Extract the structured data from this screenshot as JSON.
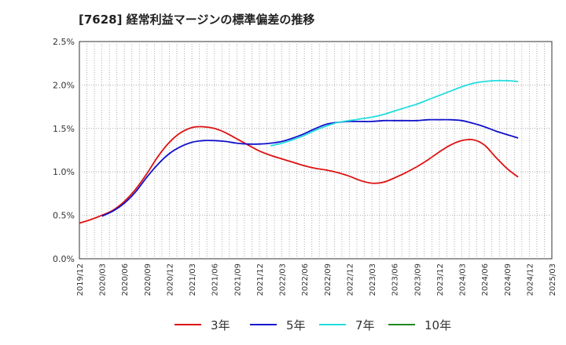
{
  "chart_data": {
    "type": "line",
    "title": "[7628]  経常利益マージンの標準偏差の推移",
    "ylim": [
      0,
      2.5
    ],
    "yticks": [
      "0.0%",
      "0.5%",
      "1.0%",
      "1.5%",
      "2.0%",
      "2.5%"
    ],
    "xticks": [
      "2019/12",
      "2020/03",
      "2020/06",
      "2020/09",
      "2020/12",
      "2021/03",
      "2021/06",
      "2021/09",
      "2021/12",
      "2022/03",
      "2022/06",
      "2022/09",
      "2022/12",
      "2023/03",
      "2023/06",
      "2023/09",
      "2023/12",
      "2024/03",
      "2024/06",
      "2024/09",
      "2024/12",
      "2025/03"
    ],
    "grid": true,
    "legend_position": "bottom",
    "series": [
      {
        "name": "3年",
        "color": "#dd1111",
        "values": [
          0.41,
          0.45,
          0.5,
          0.56,
          0.66,
          0.8,
          0.98,
          1.18,
          1.34,
          1.45,
          1.51,
          1.52,
          1.5,
          1.45,
          1.38,
          1.31,
          1.24,
          1.19,
          1.15,
          1.11,
          1.07,
          1.04,
          1.02,
          0.99,
          0.95,
          0.9,
          0.87,
          0.88,
          0.93,
          0.99,
          1.06,
          1.14,
          1.23,
          1.31,
          1.36,
          1.37,
          1.31,
          1.17,
          1.04,
          0.94
        ]
      },
      {
        "name": "5年",
        "color": "#1111cc",
        "values": [
          null,
          null,
          0.49,
          0.55,
          0.64,
          0.77,
          0.94,
          1.09,
          1.21,
          1.29,
          1.34,
          1.36,
          1.36,
          1.35,
          1.33,
          1.32,
          1.32,
          1.33,
          1.35,
          1.39,
          1.44,
          1.5,
          1.55,
          1.57,
          1.58,
          1.58,
          1.58,
          1.59,
          1.59,
          1.59,
          1.59,
          1.6,
          1.6,
          1.6,
          1.59,
          1.56,
          1.52,
          1.47,
          1.43,
          1.39
        ]
      },
      {
        "name": "7年",
        "color": "#22dddd",
        "values": [
          null,
          null,
          null,
          null,
          null,
          null,
          null,
          null,
          null,
          null,
          null,
          null,
          null,
          null,
          null,
          null,
          null,
          1.3,
          1.33,
          1.37,
          1.42,
          1.48,
          1.53,
          1.57,
          1.59,
          1.61,
          1.63,
          1.66,
          1.7,
          1.74,
          1.78,
          1.83,
          1.88,
          1.93,
          1.98,
          2.02,
          2.04,
          2.05,
          2.05,
          2.04
        ]
      },
      {
        "name": "10年",
        "color": "#228822",
        "values": []
      }
    ]
  }
}
